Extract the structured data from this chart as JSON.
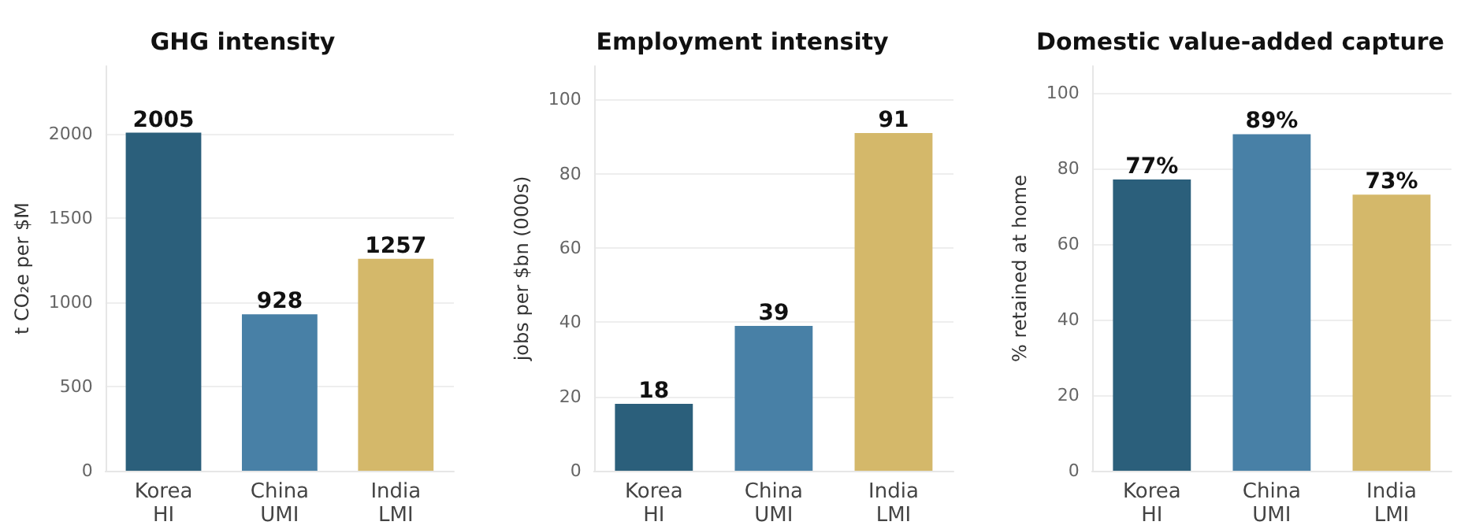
{
  "chart_data": [
    {
      "type": "bar",
      "title": "GHG intensity",
      "ylabel": "t CO₂e per $M",
      "categories": [
        "Korea\nHI",
        "China\nUMI",
        "India\nLMI"
      ],
      "values": [
        2005,
        928,
        1257
      ],
      "colors": [
        "#2b5f7b",
        "#4880a6",
        "#d4b86a"
      ],
      "ylim": [
        0,
        2400
      ],
      "yticks": [
        0,
        500,
        1000,
        1500,
        2000
      ],
      "grid": "y",
      "data_labels": true
    },
    {
      "type": "bar",
      "title": "Employment intensity",
      "ylabel": "jobs per $bn (000s)",
      "categories": [
        "Korea\nHI",
        "China\nUMI",
        "India\nLMI"
      ],
      "values": [
        18,
        39,
        91
      ],
      "colors": [
        "#2b5f7b",
        "#4880a6",
        "#d4b86a"
      ],
      "ylim": [
        0,
        109
      ],
      "yticks": [
        0,
        20,
        40,
        60,
        80,
        100
      ],
      "grid": "y",
      "data_labels": true
    },
    {
      "type": "bar",
      "title": "Domestic value-added capture",
      "ylabel": "% retained at home",
      "categories": [
        "Korea\nHI",
        "China\nUMI",
        "India\nLMI"
      ],
      "values": [
        77,
        89,
        73
      ],
      "value_labels": [
        "77%",
        "89%",
        "73%"
      ],
      "colors": [
        "#2b5f7b",
        "#4880a6",
        "#d4b86a"
      ],
      "ylim": [
        0,
        107
      ],
      "yticks": [
        0,
        20,
        40,
        60,
        80,
        100
      ],
      "grid": "y"
    }
  ]
}
